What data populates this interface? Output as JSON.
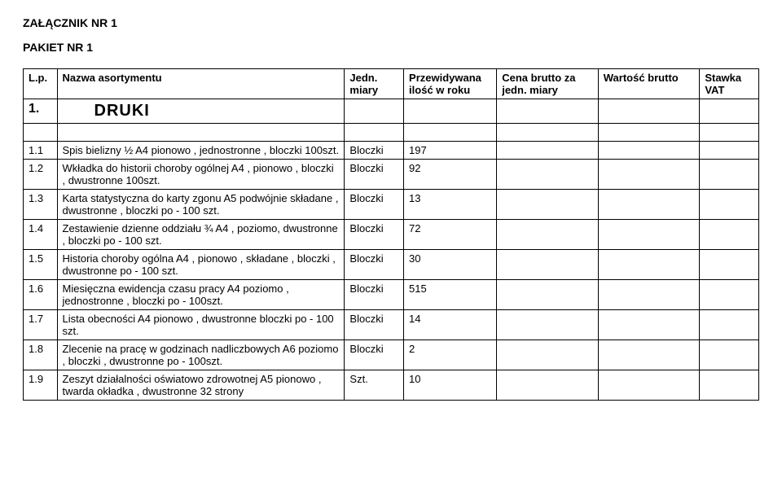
{
  "header": {
    "attachment": "ZAŁĄCZNIK NR 1",
    "package": "PAKIET NR 1"
  },
  "columns": {
    "lp": "L.p.",
    "name": "Nazwa asortymentu",
    "unit": "Jedn. miary",
    "qty": "Przewidywana ilość w roku",
    "price": "Cena brutto za jedn. miary",
    "value": "Wartość brutto",
    "vat": "Stawka VAT"
  },
  "section": {
    "num": "1.",
    "name": "DRUKI"
  },
  "rows": [
    {
      "lp": "1.1",
      "name": "Spis bielizny ½ A4 pionowo , jednostronne , bloczki 100szt.",
      "unit": "Bloczki",
      "qty": "197"
    },
    {
      "lp": "1.2",
      "name": "Wkładka do historii choroby ogólnej A4 , pionowo , bloczki , dwustronne 100szt.",
      "unit": "Bloczki",
      "qty": "92"
    },
    {
      "lp": "1.3",
      "name": "Karta statystyczna do karty zgonu A5 podwójnie składane , dwustronne , bloczki po - 100 szt.",
      "unit": "Bloczki",
      "qty": "13"
    },
    {
      "lp": "1.4",
      "name": "Zestawienie dzienne oddziału ¾ A4 , poziomo, dwustronne , bloczki po - 100 szt.",
      "unit": "Bloczki",
      "qty": "72"
    },
    {
      "lp": "1.5",
      "name": "Historia choroby ogólna A4 , pionowo , składane , bloczki ,  dwustronne po - 100 szt.",
      "unit": "Bloczki",
      "qty": "30"
    },
    {
      "lp": "1.6",
      "name": "Miesięczna ewidencja czasu pracy A4 poziomo , jednostronne , bloczki po -  100szt.",
      "unit": "Bloczki",
      "qty": "515"
    },
    {
      "lp": "1.7",
      "name": "Lista obecności A4 pionowo , dwustronne bloczki po - 100 szt.",
      "unit": "Bloczki",
      "qty": "14"
    },
    {
      "lp": "1.8",
      "name": "Zlecenie na pracę w godzinach nadliczbowych A6 poziomo , bloczki , dwustronne po - 100szt.",
      "unit": "Bloczki",
      "qty": "2"
    },
    {
      "lp": "1.9",
      "name": "Zeszyt działalności oświatowo zdrowotnej A5 pionowo , twarda okładka , dwustronne 32 strony",
      "unit": "Szt.",
      "qty": "10"
    }
  ]
}
